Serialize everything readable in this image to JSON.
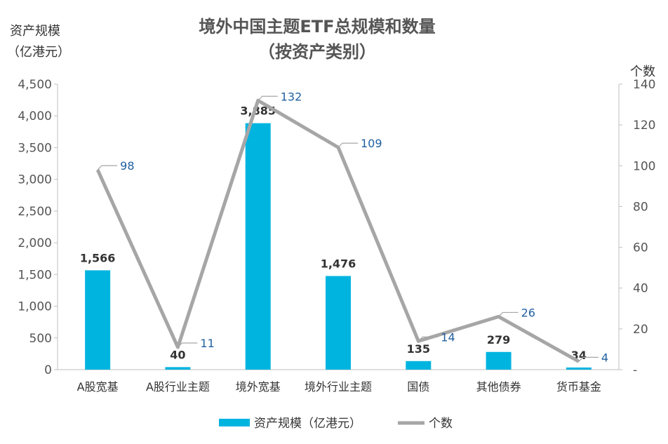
{
  "chart_data": {
    "type": "bar",
    "title_line1": "境外中国主题ETF总规模和数量",
    "title_line2": "（按资产类别）",
    "ylabel_left_line1": "资产规模",
    "ylabel_left_line2": "（亿港元）",
    "ylabel_right": "个数",
    "categories": [
      "A股宽基",
      "A股行业主题",
      "境外宽基",
      "境外行业主题",
      "国债",
      "其他债券",
      "货币基金"
    ],
    "series": [
      {
        "name": "资产规模（亿港元）",
        "type": "bar",
        "axis": "left",
        "color": "#00b4e0",
        "values": [
          1566,
          40,
          3885,
          1476,
          135,
          279,
          34
        ],
        "labels": [
          "1,566",
          "40",
          "3,885",
          "1,476",
          "135",
          "279",
          "34"
        ]
      },
      {
        "name": "个数",
        "type": "line",
        "axis": "right",
        "color": "#a6a6a6",
        "values": [
          98,
          11,
          132,
          109,
          14,
          26,
          4
        ],
        "labels": [
          "98",
          "11",
          "132",
          "109",
          "14",
          "26",
          "4"
        ]
      }
    ],
    "left_axis": {
      "min": 0,
      "max": 4500,
      "step": 500,
      "tick_labels": [
        "0",
        "500",
        "1,000",
        "1,500",
        "2,000",
        "2,500",
        "3,000",
        "3,500",
        "4,000",
        "4,500"
      ]
    },
    "right_axis": {
      "min": 0,
      "max": 140,
      "step": 20,
      "tick_labels": [
        "-",
        "20",
        "40",
        "60",
        "80",
        "100",
        "120",
        "140"
      ]
    },
    "grid": false,
    "legend_position": "bottom"
  }
}
